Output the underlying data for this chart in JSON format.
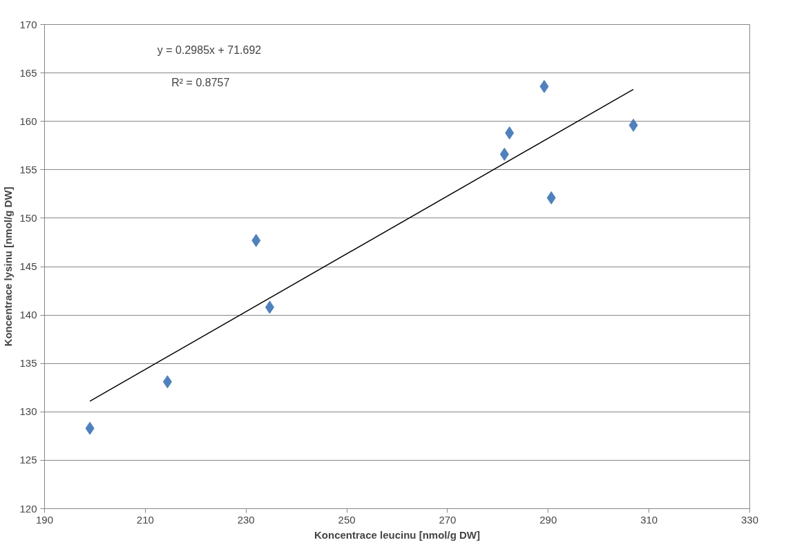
{
  "chart_data": {
    "type": "scatter",
    "xlabel": "Koncentrace leucinu [nmol/g DW]",
    "ylabel": "Koncentrace lysinu [nmol/g DW]",
    "xlim": [
      190,
      330
    ],
    "xticks": [
      190,
      210,
      230,
      250,
      270,
      290,
      310,
      330
    ],
    "ylim": [
      120,
      170
    ],
    "yticks": [
      120,
      125,
      130,
      135,
      140,
      145,
      150,
      155,
      160,
      165,
      170
    ],
    "grid": "y",
    "marker": "diamond",
    "series": [
      {
        "color": "#4f81bd",
        "x": [
          199.0,
          214.4,
          232.0,
          234.7,
          281.3,
          282.3,
          289.2,
          290.6,
          306.9
        ],
        "values": [
          128.3,
          133.1,
          147.7,
          140.8,
          156.6,
          158.8,
          163.6,
          152.1,
          159.6
        ]
      },
      {
        "type": "line",
        "color": "#000000",
        "line_style": "solid",
        "marker": "none",
        "x": [
          199.0,
          306.9
        ],
        "values": [
          131.1,
          163.3
        ]
      }
    ],
    "annotations": [
      "y = 0.2985x + 71.692",
      "R² = 0.8757"
    ]
  }
}
